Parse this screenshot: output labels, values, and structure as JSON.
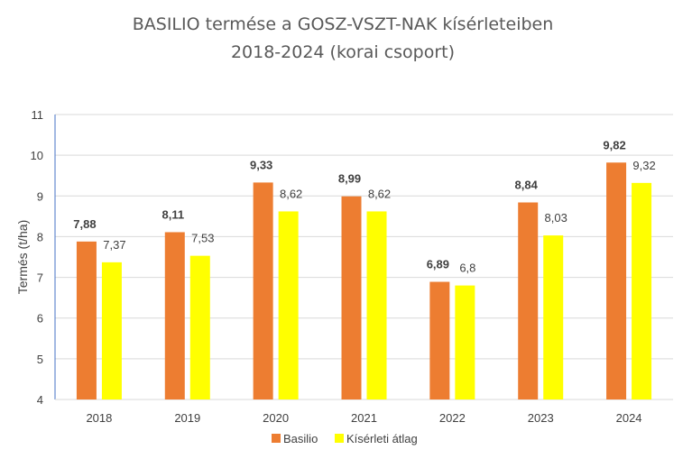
{
  "chart_data": {
    "type": "bar",
    "title_line1": "BASILIO termése a GOSZ-VSZT-NAK kísérleteiben",
    "title_line2": "2018-2024 (korai csoport)",
    "xlabel": "",
    "ylabel": "Termés (t/ha)",
    "ylim": [
      4,
      11
    ],
    "yticks": [
      "4",
      "5",
      "6",
      "7",
      "8",
      "9",
      "10",
      "11"
    ],
    "grid": true,
    "legend_position": "bottom",
    "categories": [
      "2018",
      "2019",
      "2020",
      "2021",
      "2022",
      "2023",
      "2024"
    ],
    "series": [
      {
        "name": "Basilio",
        "color": "#ED7D31",
        "values": [
          7.88,
          8.11,
          9.33,
          8.99,
          6.89,
          8.84,
          9.82
        ],
        "labels": [
          "7,88",
          "8,11",
          "9,33",
          "8,99",
          "6,89",
          "8,84",
          "9,82"
        ]
      },
      {
        "name": "Kísérleti átlag",
        "color": "#FFFF00",
        "values": [
          7.37,
          7.53,
          8.62,
          8.62,
          6.8,
          8.03,
          9.32
        ],
        "labels": [
          "7,37",
          "7,53",
          "8,62",
          "8,62",
          "6,8",
          "8,03",
          "9,32"
        ]
      }
    ]
  }
}
